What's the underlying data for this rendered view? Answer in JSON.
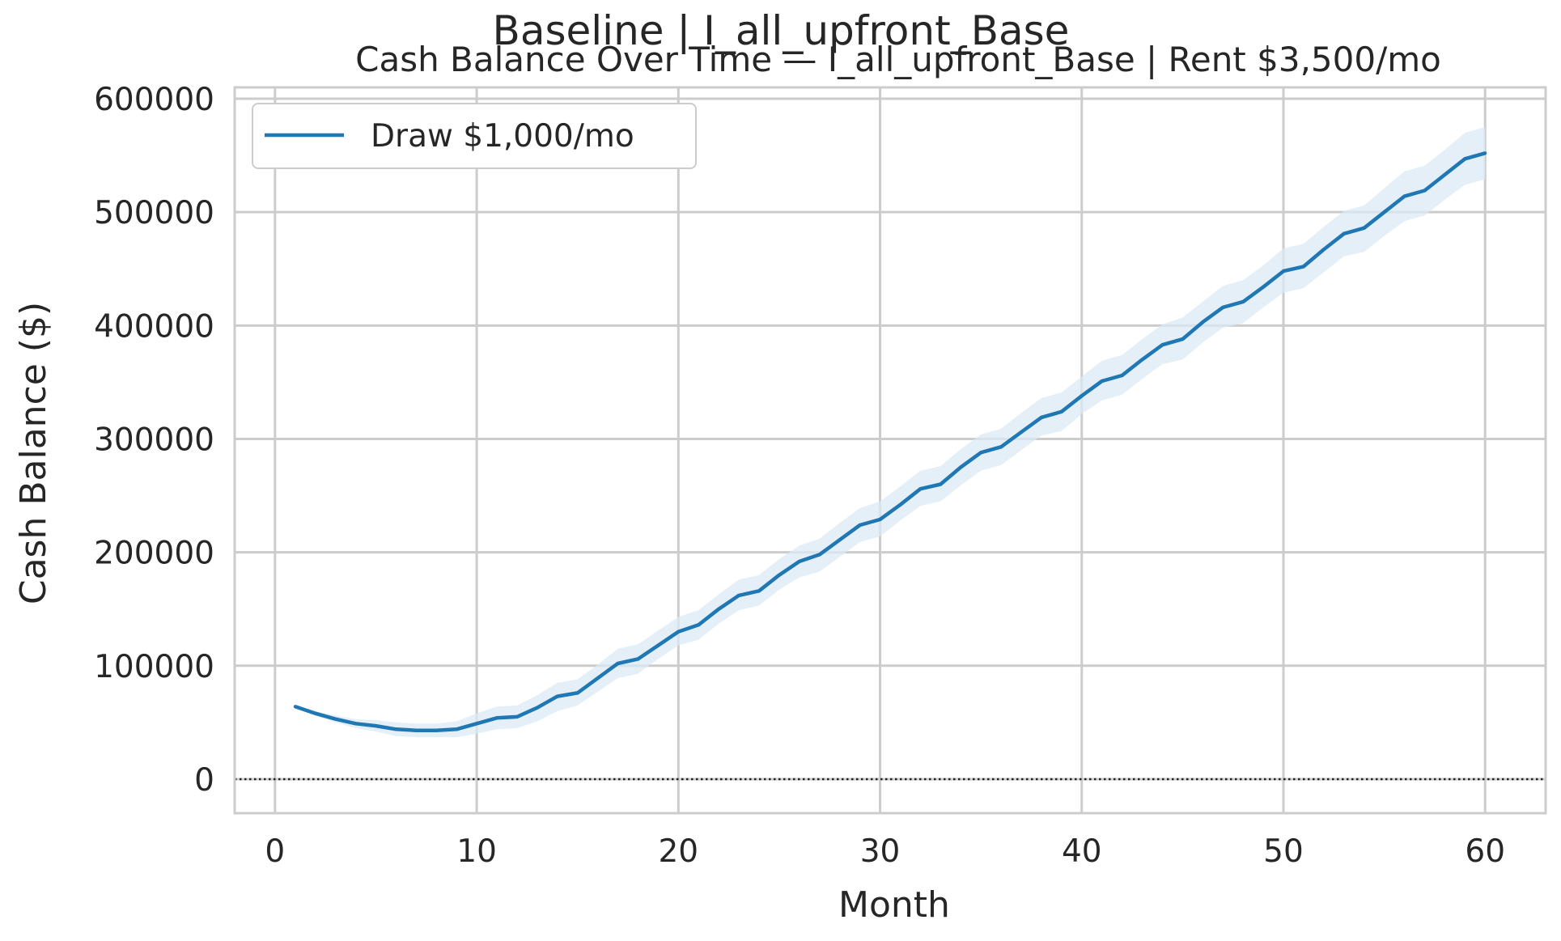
{
  "figure": {
    "suptitle": "Baseline | I_all_upfront_Base",
    "subtitle": "Cash Balance Over Time — I_all_upfront_Base | Rent $3,500/mo"
  },
  "colors": {
    "line": "#1f77b4",
    "band": "#dbe9f6",
    "grid": "#cccccc",
    "spine": "#cccccc",
    "text": "#262626",
    "zero_line": "#222222"
  },
  "chart_data": {
    "type": "line",
    "title": "Cash Balance Over Time — I_all_upfront_Base | Rent $3,500/mo",
    "xlabel": "Month",
    "ylabel": "Cash Balance ($)",
    "xlim": [
      -2,
      63
    ],
    "ylim": [
      -30000,
      610000
    ],
    "xticks": [
      0,
      10,
      20,
      30,
      40,
      50,
      60
    ],
    "xtick_labels": [
      "0",
      "10",
      "20",
      "30",
      "40",
      "50",
      "60"
    ],
    "yticks": [
      0,
      100000,
      200000,
      300000,
      400000,
      500000,
      600000
    ],
    "ytick_labels": [
      "0",
      "100000",
      "200000",
      "300000",
      "400000",
      "500000",
      "600000"
    ],
    "grid": true,
    "legend": {
      "placement": "upper-left"
    },
    "reference_line": {
      "y": 0,
      "style": "dotted"
    },
    "series": [
      {
        "name": "Draw $1,000/mo",
        "x": [
          1,
          2,
          3,
          4,
          5,
          6,
          7,
          8,
          9,
          10,
          11,
          12,
          13,
          14,
          15,
          16,
          17,
          18,
          19,
          20,
          21,
          22,
          23,
          24,
          25,
          26,
          27,
          28,
          29,
          30,
          31,
          32,
          33,
          34,
          35,
          36,
          37,
          38,
          39,
          40,
          41,
          42,
          43,
          44,
          45,
          46,
          47,
          48,
          49,
          50,
          51,
          52,
          53,
          54,
          55,
          56,
          57,
          58,
          59,
          60
        ],
        "values": [
          64000,
          58000,
          53000,
          49000,
          47000,
          44000,
          43000,
          43000,
          44000,
          49000,
          54000,
          55000,
          63000,
          73000,
          76000,
          89000,
          102000,
          106000,
          118000,
          130000,
          136000,
          150000,
          162000,
          166000,
          180000,
          192000,
          198000,
          211000,
          224000,
          229000,
          242000,
          256000,
          260000,
          275000,
          288000,
          293000,
          306000,
          319000,
          324000,
          338000,
          351000,
          356000,
          370000,
          383000,
          388000,
          403000,
          416000,
          421000,
          434000,
          448000,
          452000,
          467000,
          481000,
          486000,
          500000,
          514000,
          519000,
          533000,
          547000,
          552000
        ],
        "band_lower": [
          63000,
          56000,
          50000,
          45000,
          42000,
          38000,
          37000,
          37000,
          37000,
          40000,
          44000,
          45000,
          51000,
          60000,
          65000,
          77000,
          89000,
          93000,
          106000,
          118000,
          123000,
          137000,
          149000,
          153000,
          167000,
          178000,
          183000,
          196000,
          209000,
          214000,
          228000,
          241000,
          245000,
          259000,
          272000,
          277000,
          290000,
          303000,
          307000,
          322000,
          334000,
          339000,
          353000,
          366000,
          370000,
          385000,
          398000,
          402000,
          416000,
          429000,
          433000,
          447000,
          461000,
          465000,
          479000,
          492000,
          497000,
          511000,
          524000,
          529000
        ],
        "band_upper": [
          65000,
          60000,
          56000,
          53000,
          52000,
          50000,
          49000,
          49000,
          51000,
          58000,
          64000,
          65000,
          74000,
          85000,
          88000,
          101000,
          115000,
          119000,
          131000,
          143000,
          149000,
          163000,
          176000,
          180000,
          194000,
          206000,
          212000,
          226000,
          239000,
          245000,
          258000,
          272000,
          276000,
          291000,
          304000,
          309000,
          323000,
          336000,
          341000,
          355000,
          369000,
          374000,
          388000,
          401000,
          407000,
          421000,
          435000,
          440000,
          453000,
          468000,
          472000,
          487000,
          501000,
          506000,
          521000,
          536000,
          541000,
          555000,
          570000,
          575000
        ]
      }
    ]
  }
}
